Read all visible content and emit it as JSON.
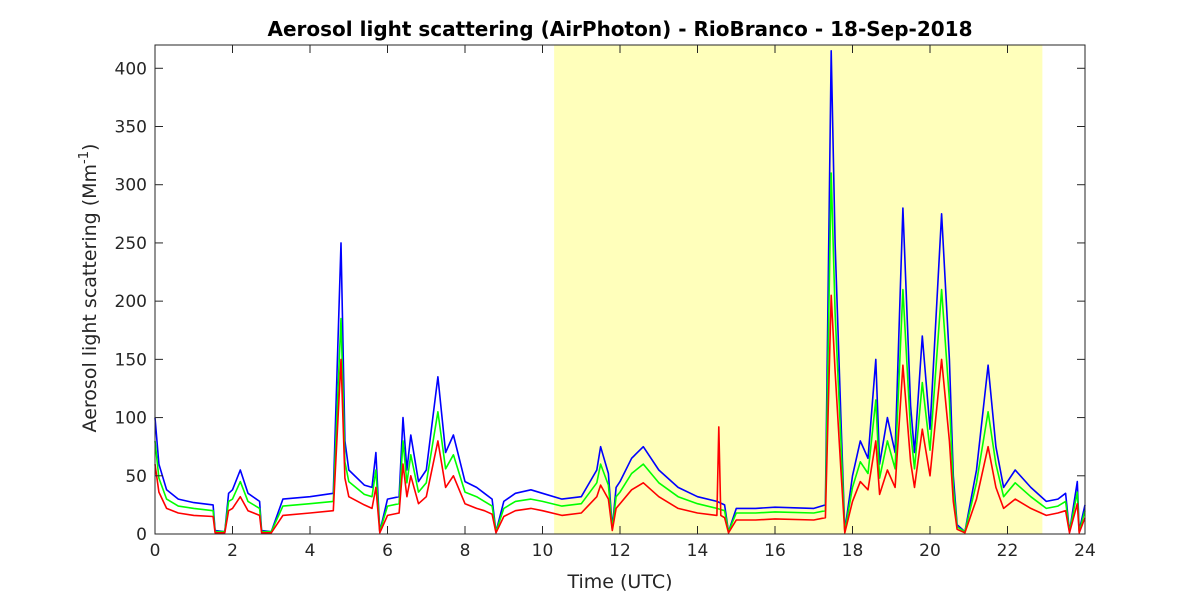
{
  "chart_data": {
    "type": "line",
    "title": "Aerosol light scattering (AirPhoton) - RioBranco - 18-Sep-2018",
    "xlabel": "Time (UTC)",
    "ylabel_main": "Aerosol light scattering (Mm",
    "ylabel_sup": "-1",
    "ylabel_close": ")",
    "xlim": [
      0,
      24
    ],
    "ylim": [
      0,
      420
    ],
    "xticks": [
      0,
      2,
      4,
      6,
      8,
      10,
      12,
      14,
      16,
      18,
      20,
      22,
      24
    ],
    "xtick_labels": [
      "0",
      "2",
      "4",
      "6",
      "8",
      "10",
      "12",
      "14",
      "16",
      "18",
      "20",
      "22",
      "24"
    ],
    "yticks": [
      0,
      50,
      100,
      150,
      200,
      250,
      300,
      350,
      400
    ],
    "ytick_labels": [
      "0",
      "50",
      "100",
      "150",
      "200",
      "250",
      "300",
      "350",
      "400"
    ],
    "grid": false,
    "highlight_band": {
      "x_start": 10.3,
      "x_end": 22.9,
      "color": "#ffffbb"
    },
    "series": [
      {
        "color": "#0000ff",
        "x": [
          0,
          0.1,
          0.3,
          0.6,
          1.0,
          1.5,
          1.55,
          1.8,
          1.9,
          2.0,
          2.2,
          2.4,
          2.7,
          2.75,
          3.0,
          3.3,
          4.0,
          4.6,
          4.8,
          4.9,
          5.0,
          5.4,
          5.6,
          5.7,
          5.8,
          6.0,
          6.3,
          6.4,
          6.5,
          6.6,
          6.8,
          7.0,
          7.3,
          7.5,
          7.7,
          8.0,
          8.3,
          8.5,
          8.7,
          8.8,
          9.0,
          9.3,
          9.7,
          10.0,
          10.5,
          11.0,
          11.4,
          11.5,
          11.7,
          11.8,
          11.9,
          12.0,
          12.3,
          12.6,
          13.0,
          13.5,
          14.0,
          14.5,
          14.7,
          14.8,
          15.0,
          15.5,
          16.0,
          17.0,
          17.3,
          17.45,
          17.55,
          17.7,
          17.8,
          18.0,
          18.2,
          18.4,
          18.6,
          18.7,
          18.9,
          19.1,
          19.3,
          19.5,
          19.6,
          19.8,
          20.0,
          20.3,
          20.5,
          20.6,
          20.7,
          20.9,
          21.2,
          21.5,
          21.7,
          21.9,
          22.2,
          22.6,
          23.0,
          23.3,
          23.5,
          23.6,
          23.8,
          23.85,
          24.0
        ],
        "y": [
          100,
          60,
          38,
          30,
          27,
          25,
          3,
          2,
          35,
          38,
          55,
          35,
          28,
          3,
          2,
          30,
          32,
          35,
          250,
          80,
          55,
          42,
          40,
          70,
          2,
          30,
          32,
          100,
          55,
          85,
          45,
          55,
          135,
          70,
          85,
          45,
          40,
          35,
          30,
          2,
          28,
          35,
          38,
          35,
          30,
          32,
          55,
          75,
          52,
          5,
          40,
          45,
          65,
          75,
          55,
          40,
          32,
          28,
          25,
          2,
          22,
          22,
          23,
          22,
          25,
          415,
          250,
          100,
          3,
          50,
          80,
          65,
          150,
          60,
          100,
          70,
          280,
          110,
          70,
          170,
          90,
          275,
          150,
          50,
          8,
          2,
          55,
          145,
          75,
          40,
          55,
          40,
          28,
          30,
          35,
          2,
          45,
          3,
          25
        ]
      },
      {
        "color": "#00ff00",
        "x": [
          0,
          0.1,
          0.3,
          0.6,
          1.0,
          1.5,
          1.55,
          1.8,
          1.9,
          2.0,
          2.2,
          2.4,
          2.7,
          2.75,
          3.0,
          3.3,
          4.0,
          4.6,
          4.8,
          4.9,
          5.0,
          5.4,
          5.6,
          5.7,
          5.8,
          6.0,
          6.3,
          6.4,
          6.5,
          6.6,
          6.8,
          7.0,
          7.3,
          7.5,
          7.7,
          8.0,
          8.3,
          8.5,
          8.7,
          8.8,
          9.0,
          9.3,
          9.7,
          10.0,
          10.5,
          11.0,
          11.4,
          11.5,
          11.7,
          11.8,
          11.9,
          12.0,
          12.3,
          12.6,
          13.0,
          13.5,
          14.0,
          14.5,
          14.7,
          14.8,
          15.0,
          15.5,
          16.0,
          17.0,
          17.3,
          17.45,
          17.55,
          17.7,
          17.8,
          18.0,
          18.2,
          18.4,
          18.6,
          18.7,
          18.9,
          19.1,
          19.3,
          19.5,
          19.6,
          19.8,
          20.0,
          20.3,
          20.5,
          20.6,
          20.7,
          20.9,
          21.2,
          21.5,
          21.7,
          21.9,
          22.2,
          22.6,
          23.0,
          23.3,
          23.5,
          23.6,
          23.8,
          23.85,
          24.0
        ],
        "y": [
          80,
          48,
          30,
          24,
          22,
          20,
          2,
          2,
          28,
          30,
          45,
          28,
          22,
          2,
          2,
          24,
          26,
          28,
          185,
          62,
          45,
          34,
          32,
          55,
          2,
          24,
          26,
          80,
          44,
          68,
          36,
          44,
          105,
          56,
          68,
          36,
          32,
          28,
          24,
          2,
          22,
          28,
          30,
          28,
          24,
          26,
          44,
          60,
          42,
          4,
          32,
          36,
          52,
          60,
          44,
          32,
          26,
          22,
          20,
          2,
          18,
          18,
          19,
          18,
          20,
          310,
          190,
          80,
          2,
          40,
          62,
          52,
          115,
          48,
          80,
          56,
          210,
          88,
          56,
          130,
          72,
          210,
          115,
          40,
          6,
          2,
          44,
          105,
          60,
          32,
          44,
          32,
          22,
          24,
          28,
          2,
          36,
          2,
          20
        ]
      },
      {
        "color": "#ff0000",
        "x": [
          0,
          0.1,
          0.3,
          0.6,
          1.0,
          1.5,
          1.55,
          1.8,
          1.9,
          2.0,
          2.2,
          2.4,
          2.7,
          2.75,
          3.0,
          3.3,
          4.0,
          4.6,
          4.8,
          4.9,
          5.0,
          5.4,
          5.6,
          5.7,
          5.8,
          6.0,
          6.3,
          6.4,
          6.5,
          6.6,
          6.8,
          7.0,
          7.3,
          7.5,
          7.7,
          8.0,
          8.3,
          8.5,
          8.7,
          8.8,
          9.0,
          9.3,
          9.7,
          10.0,
          10.5,
          11.0,
          11.4,
          11.5,
          11.7,
          11.8,
          11.9,
          12.0,
          12.3,
          12.6,
          13.0,
          13.5,
          14.0,
          14.5,
          14.55,
          14.6,
          14.7,
          14.8,
          15.0,
          15.5,
          16.0,
          17.0,
          17.3,
          17.45,
          17.55,
          17.7,
          17.8,
          18.0,
          18.2,
          18.4,
          18.6,
          18.7,
          18.9,
          19.1,
          19.3,
          19.5,
          19.6,
          19.8,
          20.0,
          20.3,
          20.5,
          20.6,
          20.7,
          20.9,
          21.2,
          21.5,
          21.7,
          21.9,
          22.2,
          22.6,
          23.0,
          23.3,
          23.5,
          23.6,
          23.8,
          23.85,
          24.0
        ],
        "y": [
          60,
          36,
          22,
          18,
          16,
          15,
          1,
          1,
          20,
          22,
          32,
          20,
          16,
          1,
          1,
          16,
          18,
          20,
          150,
          48,
          32,
          25,
          22,
          40,
          1,
          16,
          18,
          60,
          32,
          50,
          26,
          32,
          80,
          40,
          50,
          26,
          22,
          20,
          17,
          1,
          15,
          20,
          22,
          20,
          16,
          18,
          32,
          42,
          30,
          3,
          22,
          26,
          38,
          44,
          32,
          22,
          18,
          16,
          92,
          16,
          14,
          1,
          12,
          12,
          13,
          12,
          14,
          205,
          140,
          55,
          1,
          28,
          45,
          38,
          80,
          34,
          55,
          40,
          145,
          62,
          40,
          90,
          50,
          150,
          80,
          28,
          4,
          1,
          30,
          75,
          40,
          22,
          30,
          22,
          16,
          18,
          20,
          1,
          26,
          1,
          14
        ]
      }
    ]
  }
}
